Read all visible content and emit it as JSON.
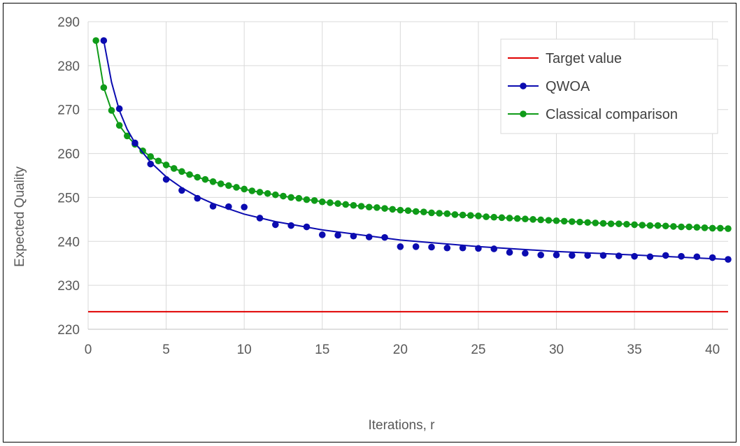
{
  "chart_data": {
    "type": "scatter",
    "title": "",
    "xlabel": "Iterations, r",
    "ylabel": "Expected Quality",
    "xlim": [
      0,
      41
    ],
    "ylim": [
      220,
      290
    ],
    "xticks": [
      0,
      5,
      10,
      15,
      20,
      25,
      30,
      35,
      40
    ],
    "yticks": [
      220,
      230,
      240,
      250,
      260,
      270,
      280,
      290
    ],
    "grid": true,
    "legend_position": "top-right",
    "series": [
      {
        "name": "Target value",
        "color": "#e00000",
        "style": "line",
        "x": [
          0,
          41
        ],
        "y": [
          224,
          224
        ]
      },
      {
        "name": "QWOA",
        "color": "#0b0bb0",
        "style": "markers+trendline",
        "x": [
          1,
          2,
          3,
          4,
          5,
          6,
          7,
          8,
          9,
          10,
          11,
          12,
          13,
          14,
          15,
          16,
          17,
          18,
          19,
          20,
          21,
          22,
          23,
          24,
          25,
          26,
          27,
          28,
          29,
          30,
          31,
          32,
          33,
          34,
          35,
          36,
          37,
          38,
          39,
          40,
          41
        ],
        "y": [
          285.7,
          270.2,
          262.4,
          257.6,
          254.1,
          251.6,
          249.8,
          248.0,
          247.9,
          247.8,
          245.3,
          243.8,
          243.6,
          243.3,
          241.5,
          241.4,
          241.2,
          241.0,
          240.9,
          238.8,
          238.8,
          238.7,
          238.5,
          238.5,
          238.4,
          238.3,
          237.5,
          237.3,
          236.9,
          236.9,
          236.8,
          236.8,
          236.8,
          236.7,
          236.6,
          236.5,
          236.8,
          236.6,
          236.5,
          236.3,
          235.9
        ],
        "trend_x": [
          1,
          1.5,
          2,
          2.5,
          3,
          4,
          5,
          6,
          7,
          8,
          10,
          12,
          15,
          20,
          25,
          30,
          35,
          41
        ],
        "trend_y": [
          285.7,
          276.2,
          269.8,
          265.5,
          262.4,
          258.0,
          254.7,
          252.2,
          250.2,
          248.6,
          246.2,
          244.5,
          242.6,
          240.3,
          238.8,
          237.7,
          236.9,
          235.9
        ]
      },
      {
        "name": "Classical comparison",
        "color": "#0f9b18",
        "style": "line+markers",
        "x": [
          0.5,
          1,
          1.5,
          2,
          2.5,
          3,
          3.5,
          4,
          4.5,
          5,
          5.5,
          6,
          6.5,
          7,
          7.5,
          8,
          8.5,
          9,
          9.5,
          10,
          10.5,
          11,
          11.5,
          12,
          12.5,
          13,
          13.5,
          14,
          14.5,
          15,
          15.5,
          16,
          16.5,
          17,
          17.5,
          18,
          18.5,
          19,
          19.5,
          20,
          20.5,
          21,
          21.5,
          22,
          22.5,
          23,
          23.5,
          24,
          24.5,
          25,
          25.5,
          26,
          26.5,
          27,
          27.5,
          28,
          28.5,
          29,
          29.5,
          30,
          30.5,
          31,
          31.5,
          32,
          32.5,
          33,
          33.5,
          34,
          34.5,
          35,
          35.5,
          36,
          36.5,
          37,
          37.5,
          38,
          38.5,
          39,
          39.5,
          40,
          40.5,
          41
        ],
        "y": [
          285.7,
          275.0,
          269.8,
          266.4,
          264.0,
          262.1,
          260.6,
          259.3,
          258.3,
          257.4,
          256.6,
          255.9,
          255.2,
          254.6,
          254.1,
          253.6,
          253.1,
          252.7,
          252.3,
          251.9,
          251.5,
          251.2,
          250.9,
          250.6,
          250.3,
          250.0,
          249.8,
          249.5,
          249.3,
          249.0,
          248.8,
          248.6,
          248.4,
          248.2,
          248.0,
          247.8,
          247.7,
          247.5,
          247.3,
          247.1,
          247.0,
          246.8,
          246.7,
          246.5,
          246.4,
          246.3,
          246.1,
          246.0,
          245.9,
          245.8,
          245.6,
          245.5,
          245.4,
          245.3,
          245.2,
          245.1,
          245.0,
          244.9,
          244.8,
          244.7,
          244.6,
          244.5,
          244.4,
          244.3,
          244.2,
          244.1,
          244.0,
          244.0,
          243.9,
          243.8,
          243.7,
          243.6,
          243.6,
          243.5,
          243.4,
          243.3,
          243.3,
          243.2,
          243.1,
          243.0,
          243.0,
          242.9
        ]
      }
    ]
  }
}
